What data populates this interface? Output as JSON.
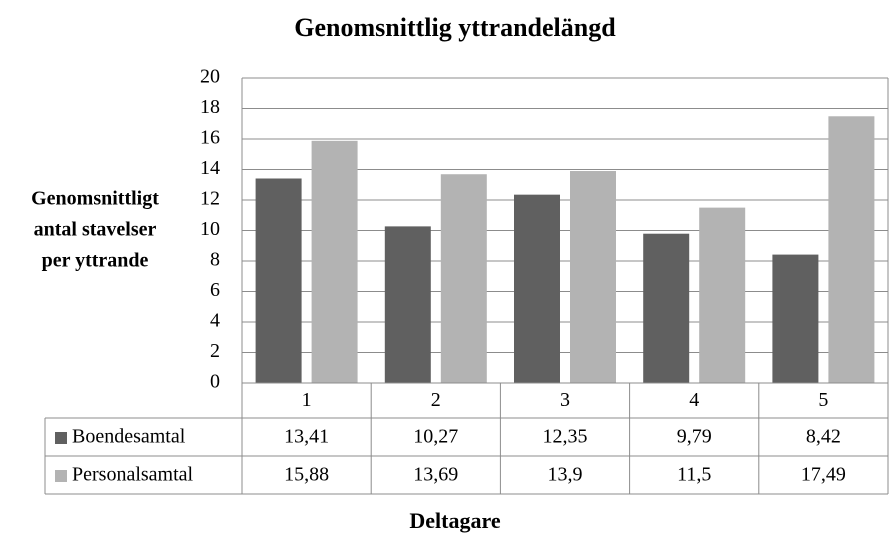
{
  "chart_data": {
    "type": "bar",
    "title": "Genomsnittlig yttrandelängd",
    "y_label": [
      "Genomsnittligt",
      "antal stavelser",
      "per yttrande"
    ],
    "x_label": "Deltagare",
    "categories": [
      "1",
      "2",
      "3",
      "4",
      "5"
    ],
    "series": [
      {
        "name": "Boendesamtal",
        "color": "#606060",
        "values": [
          13.41,
          10.27,
          12.35,
          9.79,
          8.42
        ],
        "value_labels": [
          "13,41",
          "10,27",
          "12,35",
          "9,79",
          "8,42"
        ]
      },
      {
        "name": "Personalsamtal",
        "color": "#b3b3b3",
        "values": [
          15.88,
          13.69,
          13.9,
          11.5,
          17.49
        ],
        "value_labels": [
          "15,88",
          "13,69",
          "13,9",
          "11,5",
          "17,49"
        ]
      }
    ],
    "ylim": [
      0,
      20
    ],
    "yticks": [
      0,
      2,
      4,
      6,
      8,
      10,
      12,
      14,
      16,
      18,
      20
    ],
    "grid": true
  }
}
